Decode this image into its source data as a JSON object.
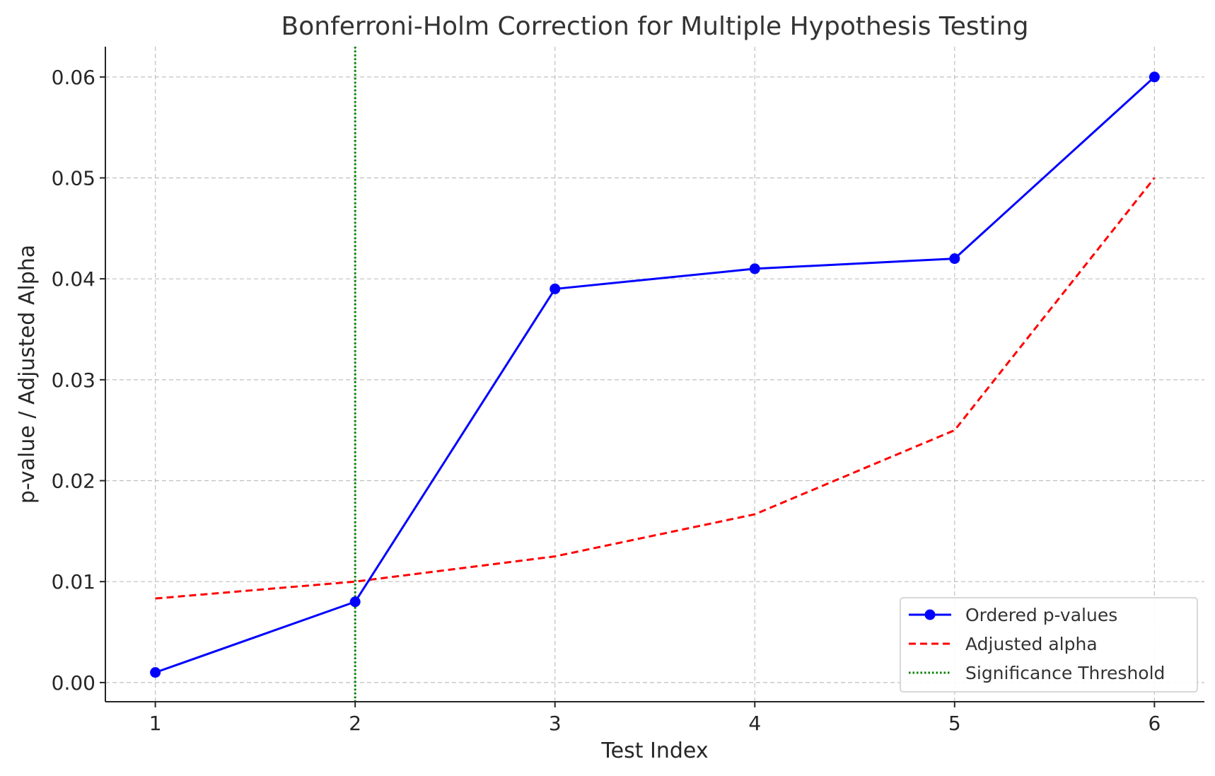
{
  "chart_data": {
    "type": "line",
    "title": "Bonferroni-Holm Correction for Multiple Hypothesis Testing",
    "xlabel": "Test Index",
    "ylabel": "p-value / Adjusted Alpha",
    "x": [
      1,
      2,
      3,
      4,
      5,
      6
    ],
    "xlim": [
      0.75,
      6.25
    ],
    "ylim": [
      -0.0019,
      0.063
    ],
    "xticks": [
      1,
      2,
      3,
      4,
      5,
      6
    ],
    "xtick_labels": [
      "1",
      "2",
      "3",
      "4",
      "5",
      "6"
    ],
    "yticks": [
      0.0,
      0.01,
      0.02,
      0.03,
      0.04,
      0.05,
      0.06
    ],
    "ytick_labels": [
      "0.00",
      "0.01",
      "0.02",
      "0.03",
      "0.04",
      "0.05",
      "0.06"
    ],
    "grid": true,
    "legend_position": "bottom-right",
    "series": [
      {
        "name": "Ordered p-values",
        "values": [
          0.001,
          0.008,
          0.039,
          0.041,
          0.042,
          0.06
        ],
        "color": "#0000ff",
        "style": "solid",
        "marker": "circle"
      },
      {
        "name": "Adjusted alpha",
        "values": [
          0.00833,
          0.01,
          0.0125,
          0.01667,
          0.025,
          0.05
        ],
        "color": "#ff0000",
        "style": "dashed"
      }
    ],
    "vlines": [
      {
        "name": "Significance Threshold",
        "x": 2,
        "color": "#008000",
        "style": "dotted"
      }
    ]
  }
}
